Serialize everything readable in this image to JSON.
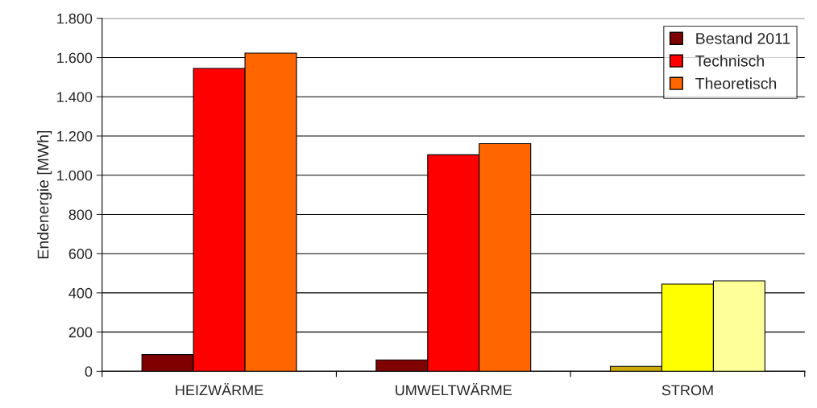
{
  "chart_data": {
    "type": "bar",
    "ylabel": "Endenergie [MWh]",
    "categories": [
      "HEIZWÄRME",
      "UMWELTWÄRME",
      "STROM"
    ],
    "series": [
      {
        "name": "Bestand 2011",
        "color": "#800000",
        "colors": [
          "#800000",
          "#800000",
          "#ccaa00"
        ],
        "values": [
          85,
          58,
          25
        ]
      },
      {
        "name": "Technisch",
        "color": "#ff0000",
        "colors": [
          "#ff0000",
          "#ff0000",
          "#ffff00"
        ],
        "values": [
          1545,
          1104,
          445
        ]
      },
      {
        "name": "Theoretisch",
        "color": "#ff6600",
        "colors": [
          "#ff6600",
          "#ff6600",
          "#ffff99"
        ],
        "values": [
          1623,
          1161,
          461
        ]
      }
    ],
    "ylim": [
      0,
      1800
    ],
    "yticks": [
      0,
      200,
      400,
      600,
      800,
      {
        "value": 1000,
        "label": "1.000"
      },
      {
        "value": 1200,
        "label": "1.200"
      },
      {
        "value": 1400,
        "label": "1.400"
      },
      {
        "value": 1600,
        "label": "1.600"
      },
      {
        "value": 1800,
        "label": "1.800"
      }
    ],
    "grid": "y",
    "legend": "top right"
  }
}
